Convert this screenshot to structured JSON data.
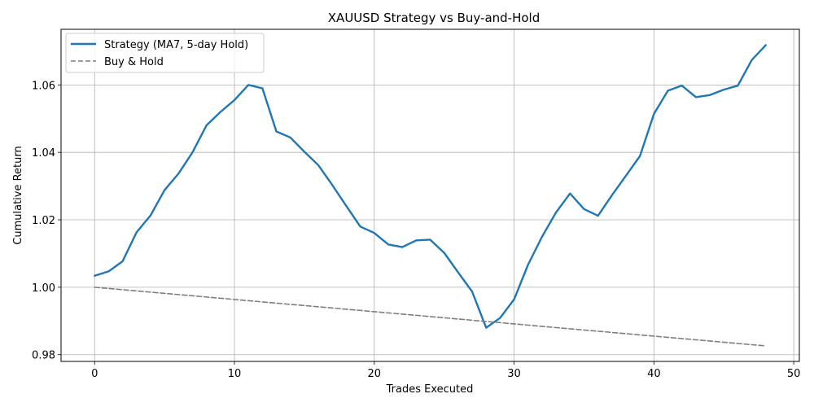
{
  "chart_data": {
    "type": "line",
    "title": "XAUUSD Strategy vs Buy-and-Hold",
    "xlabel": "Trades Executed",
    "ylabel": "Cumulative Return",
    "xlim": [
      -2.4,
      50.4
    ],
    "ylim": [
      0.978,
      1.0765
    ],
    "xticks": [
      0,
      10,
      20,
      30,
      40,
      50
    ],
    "yticks": [
      0.98,
      1.0,
      1.02,
      1.04,
      1.06
    ],
    "ytick_labels": [
      "0.98",
      "1.00",
      "1.02",
      "1.04",
      "1.06"
    ],
    "grid": true,
    "legend_position": "top-left",
    "series": [
      {
        "name": "Strategy (MA7, 5-day Hold)",
        "color": "#1f77b4",
        "style": "solid",
        "x": [
          0,
          1,
          2,
          3,
          4,
          5,
          6,
          7,
          8,
          9,
          10,
          11,
          12,
          13,
          14,
          15,
          16,
          17,
          18,
          19,
          20,
          21,
          22,
          23,
          24,
          25,
          26,
          27,
          28,
          29,
          30,
          31,
          32,
          33,
          34,
          35,
          36,
          37,
          38,
          39,
          40,
          41,
          42,
          43,
          44,
          45,
          46,
          47,
          48
        ],
        "values": [
          1.0034,
          1.0047,
          1.0077,
          1.0163,
          1.0213,
          1.0288,
          1.0337,
          1.04,
          1.048,
          1.052,
          1.0555,
          1.06,
          1.059,
          1.0462,
          1.0444,
          1.0402,
          1.0362,
          1.0303,
          1.0241,
          1.018,
          1.0161,
          1.0127,
          1.0119,
          1.0139,
          1.0141,
          1.0102,
          1.0044,
          0.9987,
          0.988,
          0.9909,
          0.9964,
          1.0067,
          1.015,
          1.0222,
          1.0278,
          1.0232,
          1.0212,
          1.0273,
          1.0331,
          1.0389,
          1.0514,
          1.0583,
          1.0598,
          1.0564,
          1.057,
          1.0586,
          1.0598,
          1.0674,
          1.0718
        ]
      },
      {
        "name": "Buy & Hold",
        "color": "#7f7f7f",
        "style": "dashed",
        "x": [
          0,
          48
        ],
        "values": [
          1.0,
          0.9826
        ]
      }
    ]
  }
}
